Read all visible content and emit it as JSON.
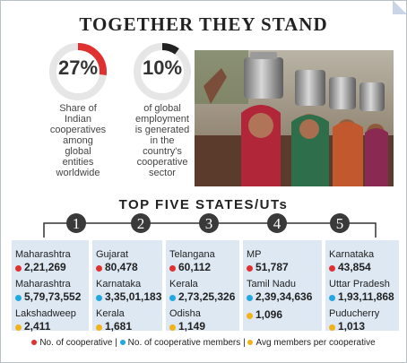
{
  "title": "TOGETHER THEY STAND",
  "stats": [
    {
      "value": "27%",
      "fraction": 0.27,
      "desc": [
        "Share of",
        "Indian",
        "cooperatives",
        "among",
        "global",
        "entities",
        "worldwide"
      ]
    },
    {
      "value": "10%",
      "fraction": 0.1,
      "desc": [
        "of global",
        "employment",
        "is generated",
        "in the",
        "country's",
        "cooperative",
        "sector"
      ]
    }
  ],
  "colors": {
    "red": "#e03131",
    "blue": "#22a7e0",
    "gold": "#f2b21a",
    "card": "#dde8f3"
  },
  "subtitle": "TOP FIVE STATES/UTs",
  "chart_data": {
    "type": "table",
    "title": "TOP FIVE STATES/UTs",
    "ranks": [
      {
        "rank": "1",
        "cooperatives": {
          "state": "Maharashtra",
          "value": "2,21,269"
        },
        "members": {
          "state": "Maharashtra",
          "value": "5,79,73,552"
        },
        "avg": {
          "state": "Lakshadweep",
          "value": "2,411"
        }
      },
      {
        "rank": "2",
        "cooperatives": {
          "state": "Gujarat",
          "value": "80,478"
        },
        "members": {
          "state": "Karnataka",
          "value": "3,35,01,183"
        },
        "avg": {
          "state": "Kerala",
          "value": "1,681"
        }
      },
      {
        "rank": "3",
        "cooperatives": {
          "state": "Telangana",
          "value": "60,112"
        },
        "members": {
          "state": "Kerala",
          "value": "2,73,25,326"
        },
        "avg": {
          "state": "Odisha",
          "value": "1,149"
        }
      },
      {
        "rank": "4",
        "cooperatives": {
          "state": "MP",
          "value": "51,787"
        },
        "members": {
          "state": "Tamil Nadu",
          "value": "2,39,34,636"
        },
        "avg": {
          "state": "",
          "value": "1,096"
        }
      },
      {
        "rank": "5",
        "cooperatives": {
          "state": "Karnataka",
          "value": "43,854"
        },
        "members": {
          "state": "Uttar Pradesh",
          "value": "1,93,11,868"
        },
        "avg": {
          "state": "Puducherry",
          "value": "1,013"
        }
      }
    ],
    "legend": [
      "No. of cooperative",
      "No. of cooperative members",
      "Avg members per cooperative"
    ]
  }
}
